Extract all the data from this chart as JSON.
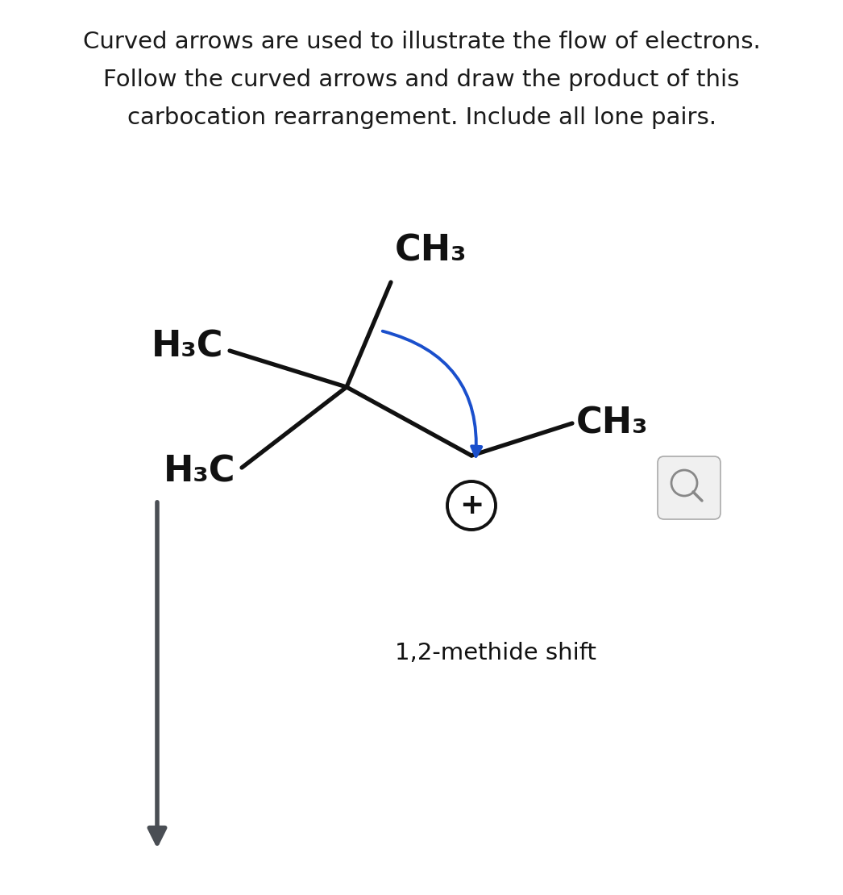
{
  "title_lines": [
    "Curved arrows are used to illustrate the flow of electrons.",
    "Follow the curved arrows and draw the product of this",
    "carbocation rearrangement. Include all lone pairs."
  ],
  "title_fontsize": 21,
  "title_color": "#1a1a1a",
  "background_color": "#ffffff",
  "bond_color": "#111111",
  "arrow_color": "#1a4fcc",
  "plus_color": "#111111",
  "label_color": "#111111",
  "chem_fontsize": 32,
  "reaction_arrow_color": "#4a4e54",
  "reaction_label": "1,2-methide shift",
  "reaction_label_fontsize": 21,
  "magnifier_color": "#aaaaaa",
  "magnifier_fill": "#f0f0f0"
}
